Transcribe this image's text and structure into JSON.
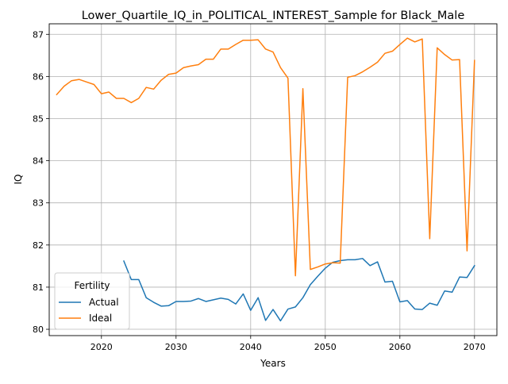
{
  "chart_data": {
    "type": "line",
    "title": "Lower_Quartile_IQ_in_POLITICAL_INTEREST_Sample for Black_Male",
    "xlabel": "Years",
    "ylabel": "IQ",
    "xlim": [
      2013,
      2073
    ],
    "ylim": [
      79.85,
      87.25
    ],
    "xticks": [
      2020,
      2030,
      2040,
      2050,
      2060,
      2070
    ],
    "yticks": [
      80,
      81,
      82,
      83,
      84,
      85,
      86,
      87
    ],
    "grid": true,
    "legend": {
      "title": "Fertility",
      "placement": "lower-left"
    },
    "series": [
      {
        "name": "Actual",
        "color": "#1f77b4",
        "x": [
          2023,
          2024,
          2025,
          2026,
          2027,
          2028,
          2029,
          2030,
          2031,
          2032,
          2033,
          2034,
          2035,
          2036,
          2037,
          2038,
          2039,
          2040,
          2041,
          2042,
          2043,
          2044,
          2045,
          2046,
          2047,
          2048,
          2049,
          2050,
          2051,
          2052,
          2053,
          2054,
          2055,
          2056,
          2057,
          2058,
          2059,
          2060,
          2061,
          2062,
          2063,
          2064,
          2065,
          2066,
          2067,
          2068,
          2069,
          2070
        ],
        "y": [
          81.62,
          81.18,
          81.18,
          80.75,
          80.64,
          80.55,
          80.56,
          80.66,
          80.66,
          80.67,
          80.73,
          80.66,
          80.7,
          80.74,
          80.71,
          80.6,
          80.84,
          80.45,
          80.75,
          80.21,
          80.47,
          80.2,
          80.48,
          80.53,
          80.75,
          81.06,
          81.26,
          81.45,
          81.59,
          81.63,
          81.65,
          81.65,
          81.68,
          81.51,
          81.6,
          81.12,
          81.14,
          80.65,
          80.68,
          80.48,
          80.47,
          80.62,
          80.57,
          80.91,
          80.88,
          81.24,
          81.23,
          81.51
        ]
      },
      {
        "name": "Ideal",
        "color": "#ff7f0e",
        "x": [
          2014,
          2015,
          2016,
          2017,
          2018,
          2019,
          2020,
          2021,
          2022,
          2023,
          2024,
          2025,
          2026,
          2027,
          2028,
          2029,
          2030,
          2031,
          2032,
          2033,
          2034,
          2035,
          2036,
          2037,
          2038,
          2039,
          2040,
          2041,
          2042,
          2043,
          2044,
          2045,
          2046,
          2047,
          2048,
          2049,
          2050,
          2051,
          2052,
          2053,
          2054,
          2055,
          2056,
          2057,
          2058,
          2059,
          2060,
          2061,
          2062,
          2063,
          2064,
          2065,
          2066,
          2067,
          2068,
          2069,
          2070
        ],
        "y": [
          85.57,
          85.77,
          85.9,
          85.93,
          85.87,
          85.81,
          85.59,
          85.63,
          85.48,
          85.48,
          85.38,
          85.48,
          85.74,
          85.7,
          85.91,
          86.05,
          86.08,
          86.21,
          86.25,
          86.28,
          86.41,
          86.41,
          86.65,
          86.65,
          86.76,
          86.86,
          86.86,
          86.87,
          86.65,
          86.58,
          86.21,
          85.96,
          81.27,
          85.71,
          81.42,
          81.48,
          81.55,
          81.58,
          81.57,
          85.98,
          86.02,
          86.11,
          86.22,
          86.34,
          86.55,
          86.6,
          86.76,
          86.91,
          86.82,
          86.89,
          82.15,
          86.68,
          86.52,
          86.39,
          86.4,
          81.86,
          86.38
        ]
      }
    ]
  }
}
